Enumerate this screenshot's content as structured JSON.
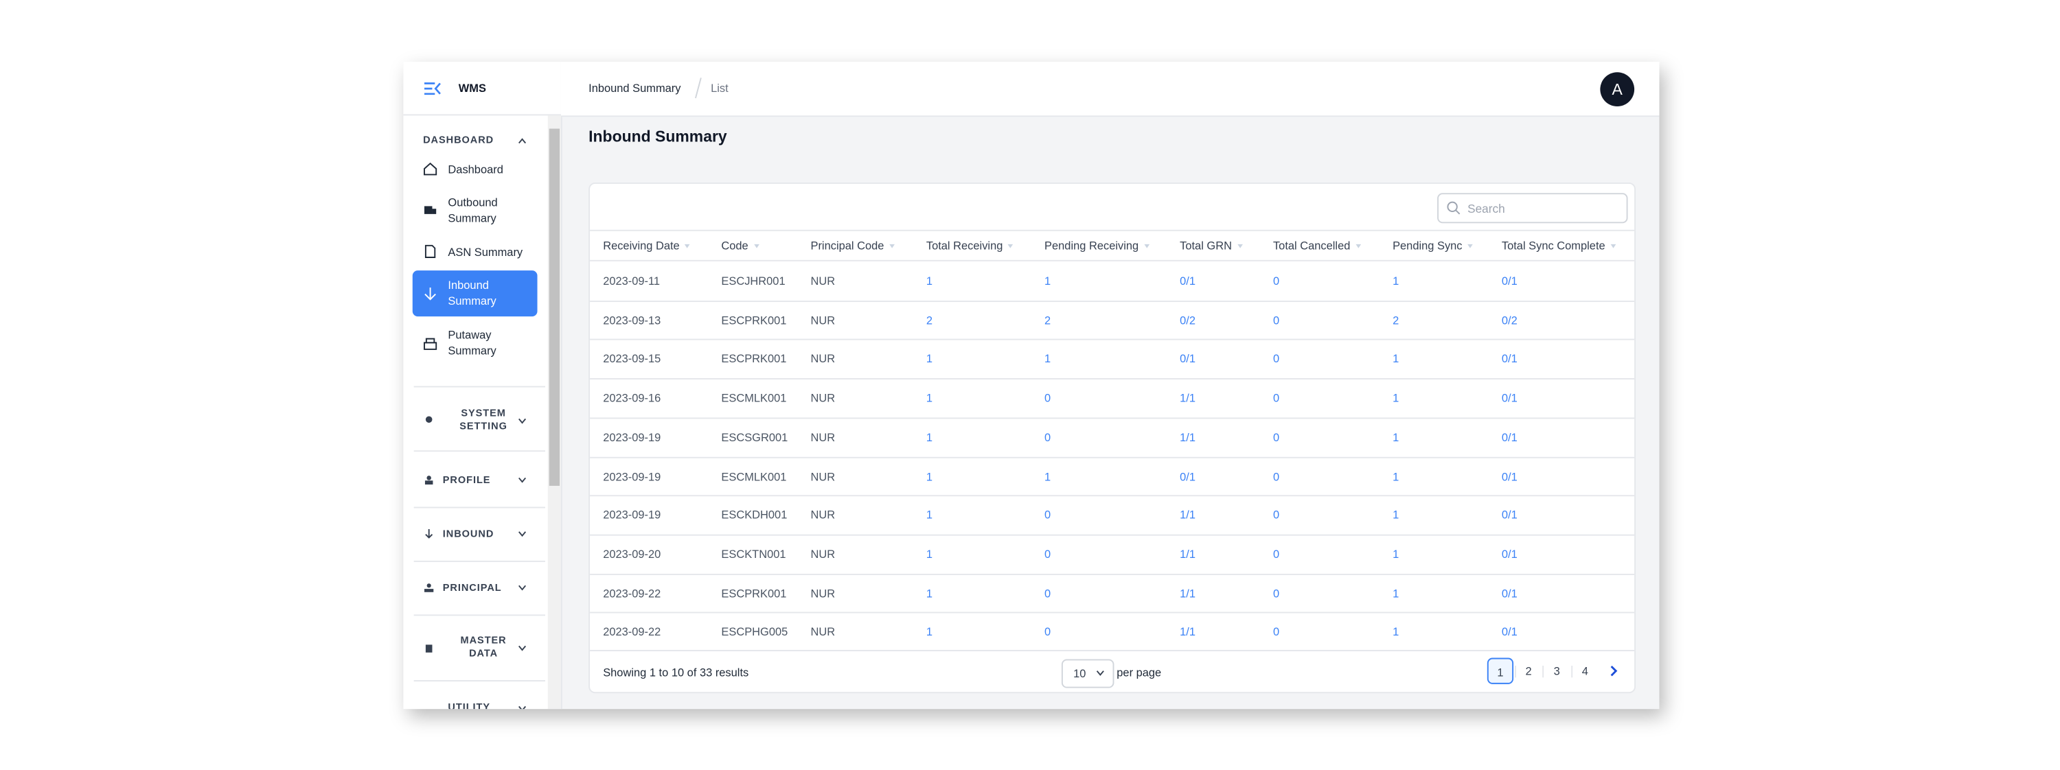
{
  "app": {
    "name": "WMS",
    "avatar": "A"
  },
  "sidebar": {
    "section": "DASHBOARD",
    "items": [
      "Dashboard",
      "Outbound Summary",
      "ASN Summary",
      "Inbound Summary",
      "Putaway Summary"
    ],
    "groups": [
      "SYSTEM SETTING",
      "PROFILE",
      "INBOUND",
      "PRINCIPAL",
      "MASTER DATA",
      "UTILITY"
    ]
  },
  "breadcrumb": [
    "Inbound Summary",
    "List"
  ],
  "page_title": "Inbound Summary",
  "search_placeholder": "Search",
  "table": {
    "headers": [
      "Receiving Date",
      "Code",
      "Principal Code",
      "Total Receiving",
      "Pending Receiving",
      "Total GRN",
      "Total Cancelled",
      "Pending Sync",
      "Total Sync Complete"
    ],
    "rows": [
      [
        "2023-09-11",
        "ESCJHR001",
        "NUR",
        1,
        1,
        "0/1",
        0,
        1,
        "0/1"
      ],
      [
        "2023-09-13",
        "ESCPRK001",
        "NUR",
        2,
        2,
        "0/2",
        0,
        2,
        "0/2"
      ],
      [
        "2023-09-15",
        "ESCPRK001",
        "NUR",
        1,
        1,
        "0/1",
        0,
        1,
        "0/1"
      ],
      [
        "2023-09-16",
        "ESCMLK001",
        "NUR",
        1,
        0,
        "1/1",
        0,
        1,
        "0/1"
      ],
      [
        "2023-09-19",
        "ESCSGR001",
        "NUR",
        1,
        0,
        "1/1",
        0,
        1,
        "0/1"
      ],
      [
        "2023-09-19",
        "ESCMLK001",
        "NUR",
        1,
        1,
        "0/1",
        0,
        1,
        "0/1"
      ],
      [
        "2023-09-19",
        "ESCKDH001",
        "NUR",
        1,
        0,
        "1/1",
        0,
        1,
        "0/1"
      ],
      [
        "2023-09-20",
        "ESCKTN001",
        "NUR",
        1,
        0,
        "1/1",
        0,
        1,
        "0/1"
      ],
      [
        "2023-09-22",
        "ESCPRK001",
        "NUR",
        1,
        0,
        "1/1",
        0,
        1,
        "0/1"
      ],
      [
        "2023-09-22",
        "ESCPHG005",
        "NUR",
        1,
        0,
        "1/1",
        0,
        1,
        "0/1"
      ]
    ]
  },
  "footer": {
    "summary": "Showing 1 to 10 of 33 results",
    "page_size": "10",
    "per_page": "per page",
    "pages": [
      "1",
      "2",
      "3",
      "4"
    ]
  }
}
